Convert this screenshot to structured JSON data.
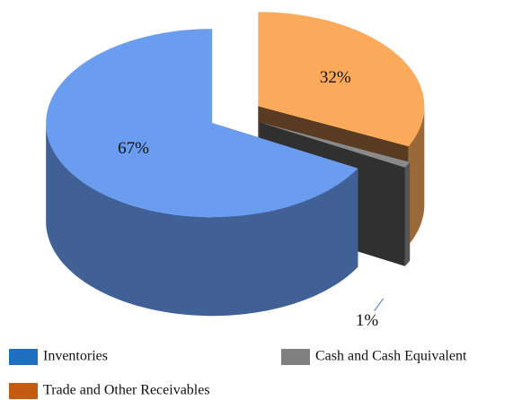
{
  "chart_data": {
    "type": "pie3d",
    "categories": [
      "Inventories",
      "Cash and Cash Equivalent",
      "Trade and Other Receivables"
    ],
    "values": [
      67,
      1,
      32
    ],
    "value_labels": [
      "67%",
      "1%",
      "32%"
    ],
    "colors": [
      "#6a9cf0",
      "#8a8a8a",
      "#fbaa5c"
    ],
    "legend_colors": [
      "#1f6fc0",
      "#808080",
      "#c55a11"
    ],
    "legend": "bottom"
  }
}
